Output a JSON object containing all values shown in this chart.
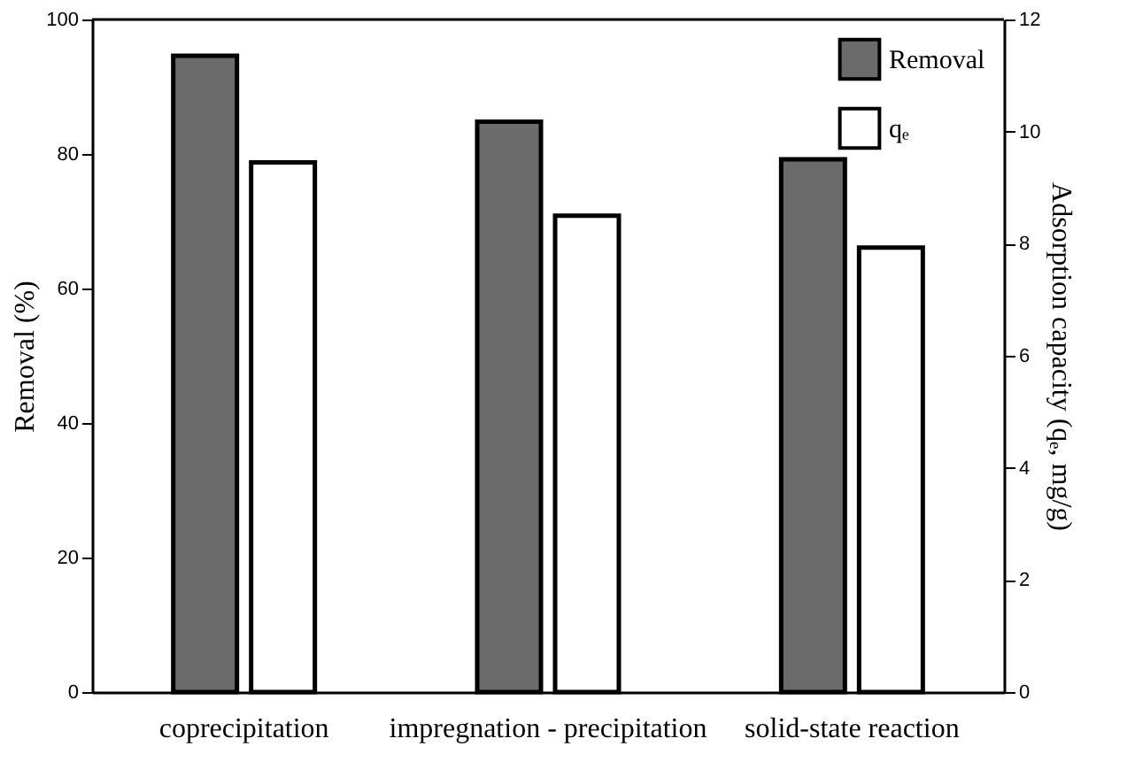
{
  "chart_data": {
    "type": "bar",
    "xlabel": null,
    "ylabel": "Removal (%)",
    "y2label": "Adsorption capacity (qₑ, mg/g)",
    "categories": [
      "coprecipitation",
      "impregnation - precipitation",
      "solid-state reaction"
    ],
    "series": [
      {
        "name": "Removal",
        "color": "#6b6b6b",
        "values": [
          94.6,
          84.8,
          79.2
        ]
      },
      {
        "name": "qₑ",
        "color": "#ffffff",
        "axis": "y2",
        "values": [
          9.45,
          8.5,
          7.93
        ]
      }
    ],
    "ylim": [
      0,
      100
    ],
    "yticks": [
      0,
      20,
      40,
      60,
      80,
      100
    ],
    "y2lim": [
      0,
      12
    ],
    "y2ticks": [
      0,
      2,
      4,
      6,
      8,
      10,
      12
    ],
    "grid": false,
    "legend": "top right"
  }
}
